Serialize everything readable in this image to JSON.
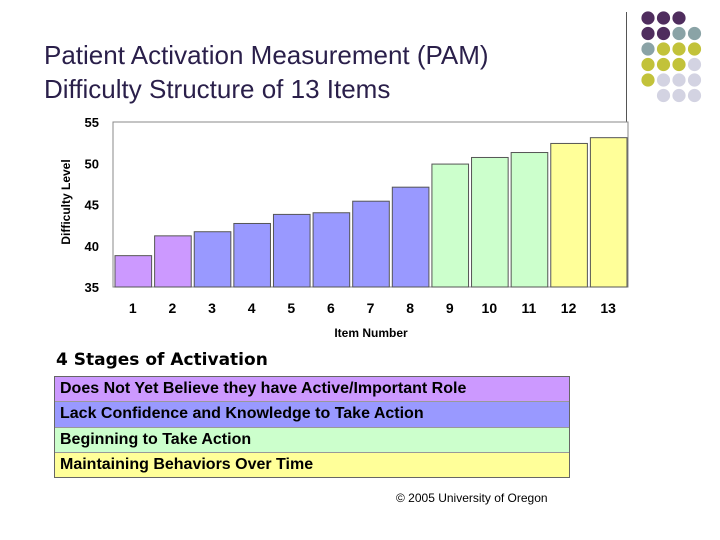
{
  "slide": {
    "title_line1": "Patient Activation Measurement (PAM)",
    "title_line2": "Difficulty Structure of 13 Items",
    "stages_heading": "4 Stages of Activation",
    "copyright": "© 2005 University of Oregon"
  },
  "stages": [
    {
      "label": "Does Not Yet Believe they have Active/Important Role",
      "color": "#cc99ff"
    },
    {
      "label": "Lack Confidence and Knowledge to Take Action",
      "color": "#9999ff"
    },
    {
      "label": "Beginning to Take Action",
      "color": "#ccffcc"
    },
    {
      "label": "Maintaining Behaviors Over Time",
      "color": "#ffff99"
    }
  ],
  "decor_colors": {
    "purple": "#4f2d5e",
    "teal": "#8aa3a6",
    "olive": "#c2c23a",
    "lavender": "#d3d3e2"
  },
  "chart_data": {
    "type": "bar",
    "title": "",
    "xlabel": "Item Number",
    "ylabel": "Difficulty Level",
    "categories": [
      "1",
      "2",
      "3",
      "4",
      "5",
      "6",
      "7",
      "8",
      "9",
      "10",
      "11",
      "12",
      "13"
    ],
    "values": [
      38.8,
      41.2,
      41.7,
      42.7,
      43.8,
      44.0,
      45.4,
      47.1,
      49.9,
      50.7,
      51.3,
      52.4,
      53.1
    ],
    "stage_of_item": [
      0,
      0,
      1,
      1,
      1,
      1,
      1,
      1,
      2,
      2,
      2,
      3,
      3
    ],
    "ylim": [
      35,
      55
    ],
    "yticks": [
      35,
      40,
      45,
      50,
      55
    ]
  }
}
